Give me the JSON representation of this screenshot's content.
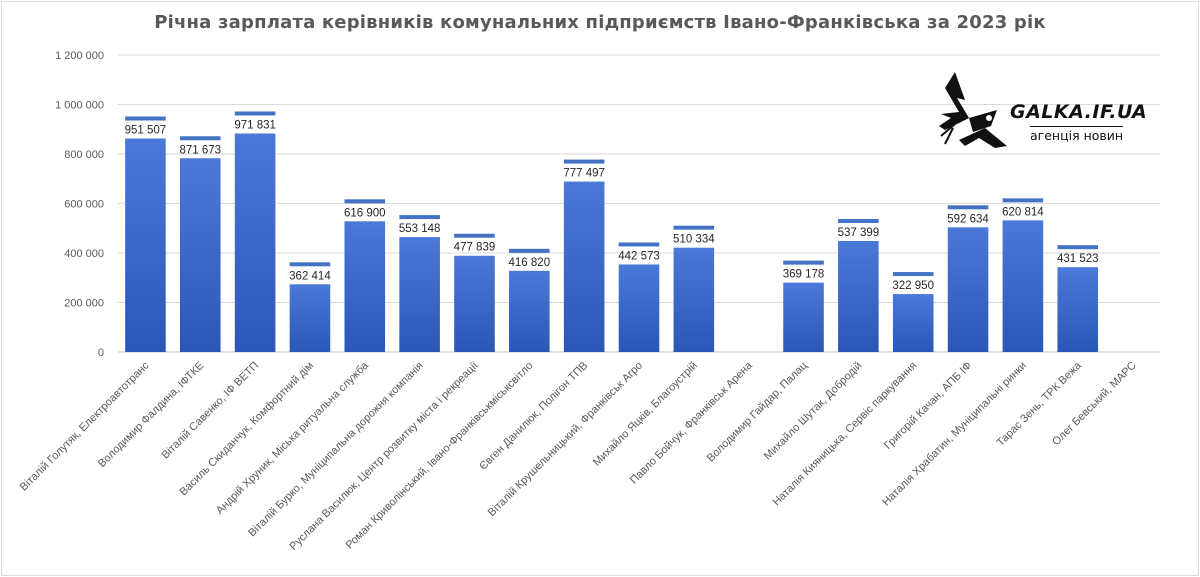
{
  "chart_data": {
    "type": "bar",
    "title": "Річна зарплата керівників комунальних підприємств Івано-Франківська за 2023 рік",
    "xlabel": "",
    "ylabel": "",
    "ylim": [
      0,
      1200000
    ],
    "yticks": [
      0,
      200000,
      400000,
      600000,
      800000,
      1000000,
      1200000
    ],
    "ytick_labels": [
      "0",
      "200 000",
      "400 000",
      "600 000",
      "800 000",
      "1 000 000",
      "1 200 000"
    ],
    "grid": true,
    "categories": [
      "Віталій Голутяк, Електроавтотранс",
      "Володимир Фалдина, ІФТКЕ",
      "Віталій Савенко, ІФ ВЕТП",
      "Василь Скиданчук, Комфортний дім",
      "Андрій Хруник, Міська ритуальна служба",
      "Віталій Бурко, Муніципальна дорожня компанія",
      "Руслана Василюк, Центр розвитку міста і рекреації",
      "Роман Криволінський, Івано-Франківськміськсвітло",
      "Євген Данилюк, Полігон ТПВ",
      "Віталій Крушельницький, Франківськ Агро",
      "Михайло Яцків, Благоустрій",
      "Павло Бойчук, Франківськ Арена",
      "Володимир Гайдар, Палац",
      "Михайло Шутак, Добродій",
      "Наталія Кияницька, Сервіс паркування",
      "Григорій Качан, АПБ ІФ",
      "Наталія Храбатин, Муніципальні ринки",
      "Тарас Зень, ТРК Вежа",
      "Олег Бевський, МАРС"
    ],
    "values": [
      951507,
      871673,
      971831,
      362414,
      616900,
      553148,
      477839,
      416820,
      777497,
      442573,
      510334,
      null,
      369178,
      537399,
      322950,
      592634,
      620814,
      431523,
      null
    ],
    "data_labels": [
      "951 507",
      "871 673",
      "971 831",
      "362 414",
      "616 900",
      "553 148",
      "477 839",
      "416 820",
      "777 497",
      "442 573",
      "510 334",
      "",
      "369 178",
      "537 399",
      "322 950",
      "592 634",
      "620 814",
      "431 523",
      ""
    ],
    "colors": {
      "bar_top": "#4a77d6",
      "bar_bottom": "#2d57b8",
      "grid": "#d9d9d9",
      "text": "#595959"
    }
  },
  "logo": {
    "name": "GALKA.IF.UA",
    "tagline": "агенція новин"
  }
}
